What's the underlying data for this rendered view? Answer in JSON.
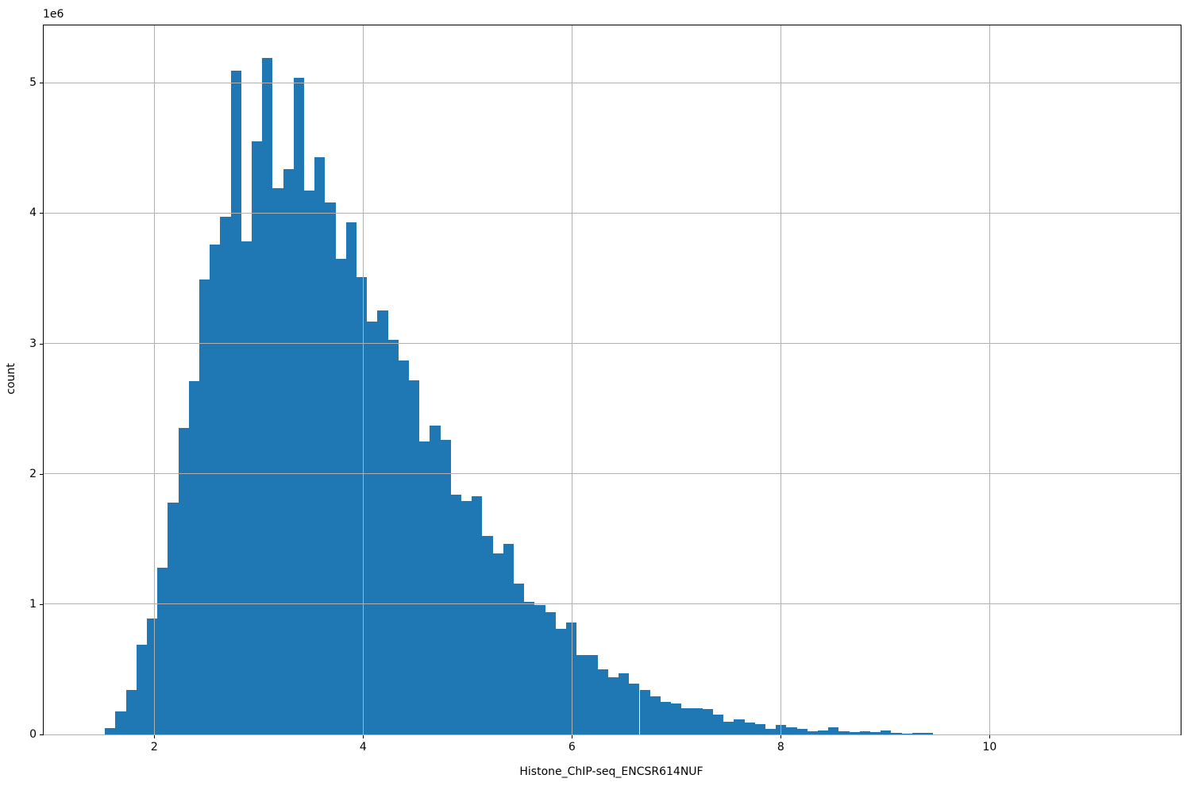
{
  "figure": {
    "background": "#ffffff"
  },
  "chart_data": {
    "type": "bar",
    "subtype": "histogram",
    "title": "",
    "xlabel": "Histone_ChIP-seq_ENCSR614NUF",
    "ylabel": "count",
    "offset_label": "1e6",
    "xlim": [
      0.94,
      11.83
    ],
    "ylim": [
      0,
      5440000
    ],
    "x_ticks": [
      2,
      4,
      6,
      8,
      10
    ],
    "y_ticks": [
      0,
      1,
      2,
      3,
      4,
      5
    ],
    "y_tick_labels": [
      "0",
      "1",
      "2",
      "3",
      "4",
      "5"
    ],
    "y_tick_scale": 1000000,
    "grid": true,
    "legend": null,
    "bar_color": "#1f77b4",
    "grid_color": "#b0b0b0",
    "spine_color": "#000000",
    "bins": {
      "start": 1.527,
      "width": 0.1004
    },
    "counts_e6": [
      0.046,
      0.175,
      0.34,
      0.69,
      0.89,
      1.28,
      1.78,
      2.35,
      2.71,
      3.49,
      3.76,
      3.97,
      5.09,
      3.78,
      4.55,
      5.19,
      4.19,
      4.34,
      5.04,
      4.17,
      4.43,
      4.08,
      3.65,
      3.93,
      3.51,
      3.17,
      3.25,
      3.03,
      2.87,
      2.72,
      2.25,
      2.37,
      2.26,
      1.84,
      1.79,
      1.83,
      1.52,
      1.39,
      1.46,
      1.16,
      1.02,
      0.99,
      0.94,
      0.81,
      0.86,
      0.61,
      0.61,
      0.5,
      0.44,
      0.47,
      0.39,
      0.34,
      0.29,
      0.25,
      0.24,
      0.2,
      0.2,
      0.195,
      0.153,
      0.1,
      0.114,
      0.094,
      0.077,
      0.043,
      0.071,
      0.053,
      0.043,
      0.026,
      0.032,
      0.057,
      0.026,
      0.016,
      0.026,
      0.02,
      0.032,
      0.01,
      0.005,
      0.012,
      0.012
    ]
  }
}
